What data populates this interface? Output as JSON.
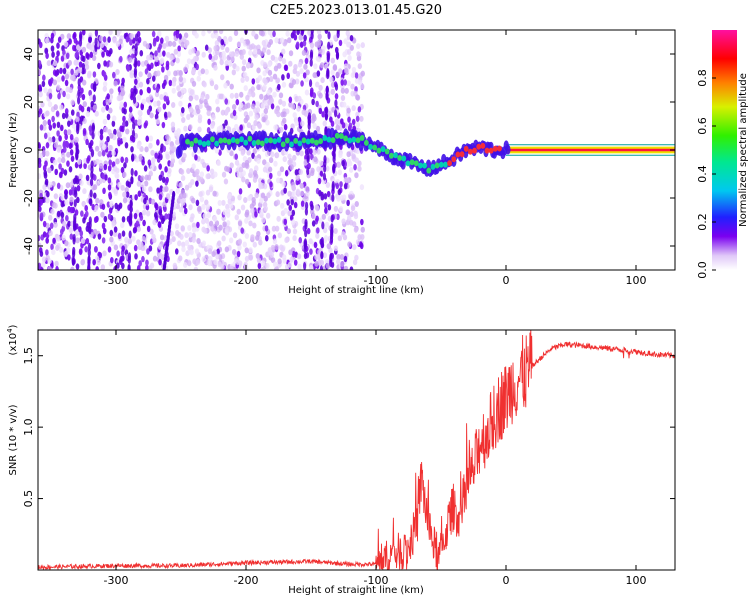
{
  "title": "C2E5.2023.013.01.45.G20",
  "chart_data": [
    {
      "type": "heatmap",
      "xlabel": "Height of straight line (km)",
      "ylabel": "Frequency (Hz)",
      "xlim": [
        -360,
        130
      ],
      "ylim": [
        -50,
        50
      ],
      "xticks": [
        -300,
        -200,
        -100,
        0,
        100
      ],
      "yticks": [
        -40,
        -20,
        0,
        20,
        40
      ],
      "colorbar": {
        "label": "Normalized spectral amplitude",
        "range": [
          0,
          1
        ],
        "ticks": [
          0.0,
          0.2,
          0.4,
          0.6,
          0.8
        ],
        "tick_labels": [
          "0.0",
          "0.2",
          "0.4",
          "0.6",
          "0.8"
        ]
      },
      "signal_track": [
        {
          "x": -250,
          "y": 3
        },
        {
          "x": -200,
          "y": 4
        },
        {
          "x": -160,
          "y": 3
        },
        {
          "x": -130,
          "y": 5
        },
        {
          "x": -110,
          "y": 4
        },
        {
          "x": -90,
          "y": -2
        },
        {
          "x": -75,
          "y": -5
        },
        {
          "x": -60,
          "y": -8
        },
        {
          "x": -45,
          "y": -5
        },
        {
          "x": -30,
          "y": 0
        },
        {
          "x": -20,
          "y": 1
        },
        {
          "x": -10,
          "y": 0
        },
        {
          "x": 0,
          "y": 0
        },
        {
          "x": 130,
          "y": 0
        }
      ]
    },
    {
      "type": "line",
      "xlabel": "Height of straight line (km)",
      "ylabel": "SNR (10 * v/v)",
      "yscale_label": "(x10",
      "yscale_exp": "4",
      "yscale_close": ")",
      "xlim": [
        -360,
        130
      ],
      "ylim": [
        0,
        1.68
      ],
      "xticks": [
        -300,
        -200,
        -100,
        0,
        100
      ],
      "yticks": [
        0.5,
        1.0,
        1.5
      ],
      "ytick_labels": [
        "0.5",
        "1.0",
        "1.5"
      ],
      "series": [
        {
          "color": "#f03030",
          "points": [
            [
              -360,
              0.02
            ],
            [
              -300,
              0.03
            ],
            [
              -250,
              0.03
            ],
            [
              -200,
              0.05
            ],
            [
              -150,
              0.06
            ],
            [
              -120,
              0.04
            ],
            [
              -100,
              0.04
            ],
            [
              -85,
              0.12
            ],
            [
              -75,
              0.15
            ],
            [
              -68,
              0.35
            ],
            [
              -65,
              0.65
            ],
            [
              -62,
              0.45
            ],
            [
              -58,
              0.25
            ],
            [
              -52,
              0.08
            ],
            [
              -48,
              0.2
            ],
            [
              -44,
              0.35
            ],
            [
              -40,
              0.45
            ],
            [
              -36,
              0.35
            ],
            [
              -30,
              0.6
            ],
            [
              -25,
              0.7
            ],
            [
              -20,
              0.9
            ],
            [
              -15,
              0.95
            ],
            [
              -10,
              1.05
            ],
            [
              -5,
              1.15
            ],
            [
              0,
              1.2
            ],
            [
              5,
              1.3
            ],
            [
              15,
              1.38
            ],
            [
              25,
              1.47
            ],
            [
              35,
              1.55
            ],
            [
              45,
              1.58
            ],
            [
              60,
              1.57
            ],
            [
              80,
              1.55
            ],
            [
              100,
              1.53
            ],
            [
              115,
              1.51
            ],
            [
              130,
              1.5
            ]
          ]
        }
      ]
    }
  ]
}
